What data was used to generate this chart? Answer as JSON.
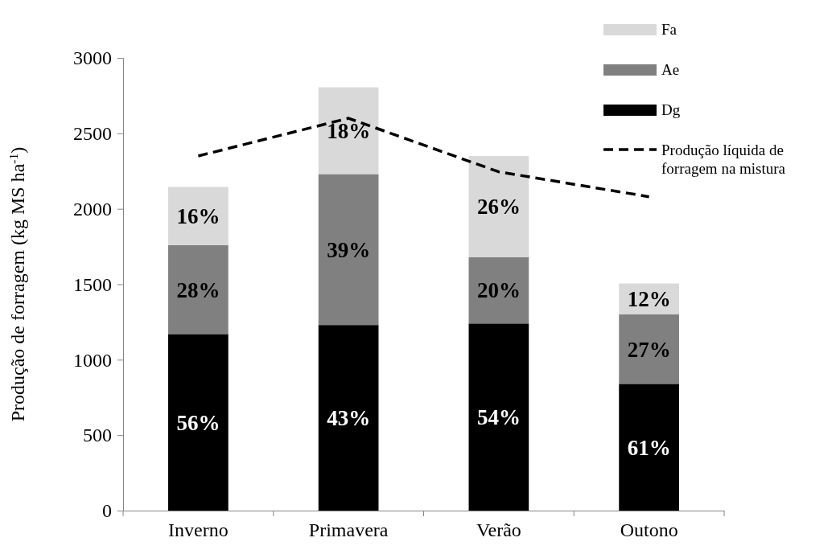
{
  "chart_data": {
    "type": "bar",
    "stacked": true,
    "ylabel": "Produção de forragem (kg MS ha$^{-1}$)",
    "categories": [
      "Inverno",
      "Primavera",
      "Verão",
      "Outono"
    ],
    "ylim": [
      0,
      3000
    ],
    "yticks": [
      0,
      500,
      1000,
      1500,
      2000,
      2500,
      3000
    ],
    "grid": false,
    "legend": "top right",
    "series": [
      {
        "name": "Dg",
        "color": "#000000",
        "values": [
          1170,
          1230,
          1240,
          840
        ]
      },
      {
        "name": "Ae",
        "color": "#808080",
        "values": [
          590,
          1000,
          440,
          460
        ]
      },
      {
        "name": "Fa",
        "color": "#d9d9d9",
        "values": [
          385,
          575,
          670,
          205
        ]
      },
      {
        "name": "Produção líquida de forragem na mistura",
        "type": "line",
        "color": "#000000",
        "line_style": "dashed",
        "marker": "none",
        "values": [
          2350,
          2600,
          2245,
          2080
        ]
      }
    ],
    "annotations": [
      "56%",
      "43%",
      "54%",
      "61%",
      "28%",
      "39%",
      "20%",
      "27%",
      "16%",
      "18%",
      "26%",
      "12%"
    ]
  }
}
